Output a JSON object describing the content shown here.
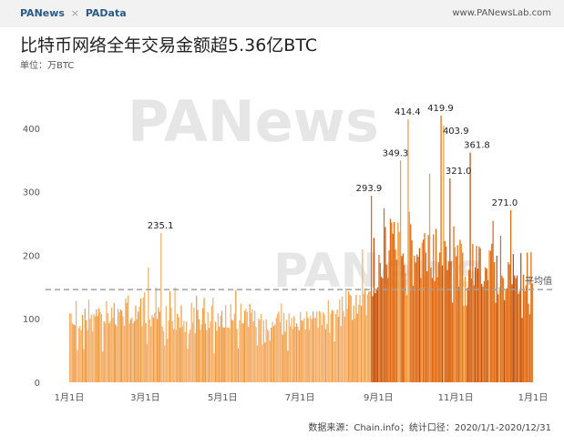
{
  "header": {
    "brand_left": "PANews",
    "brand_sep": "×",
    "brand_right": "PAData",
    "site": "www.PANewsLab.com"
  },
  "title": "比特币网络全年交易金额超5.36亿BTC",
  "unit": "单位：万BTC",
  "footer": "数据来源：Chain.info；统计口径：2020/1/1-2020/12/31",
  "watermark": "PANews",
  "colors": {
    "light": "#f4b06a",
    "medium": "#f19a3e",
    "dark": "#df6a12",
    "darkest": "#c24f0a",
    "avg_line": "#a0a0a0"
  },
  "chart_data": {
    "type": "bar",
    "title": "比特币网络全年交易金额超5.36亿BTC",
    "ylabel": "万BTC",
    "ylim": [
      0,
      440
    ],
    "yticks": [
      0,
      100,
      200,
      300,
      400
    ],
    "x_range": [
      "2020-01-01",
      "2021-01-01"
    ],
    "xticks": [
      {
        "date": "2020-01-01",
        "label": "1月1日"
      },
      {
        "date": "2020-03-01",
        "label": "3月1日"
      },
      {
        "date": "2020-05-01",
        "label": "5月1日"
      },
      {
        "date": "2020-07-01",
        "label": "7月1日"
      },
      {
        "date": "2020-09-01",
        "label": "9月1日"
      },
      {
        "date": "2020-11-01",
        "label": "11月1日"
      },
      {
        "date": "2021-01-01",
        "label": "1月1日"
      }
    ],
    "average": {
      "label": "平均值",
      "value": 146
    },
    "peaks": [
      {
        "date": "2020-03-13",
        "value": 235.1,
        "label": "235.1"
      },
      {
        "date": "2020-08-26",
        "value": 293.9,
        "label": "293.9"
      },
      {
        "date": "2020-09-18",
        "value": 349.3,
        "label": "349.3"
      },
      {
        "date": "2020-09-24",
        "value": 414.4,
        "label": "414.4"
      },
      {
        "date": "2020-10-20",
        "value": 419.9,
        "label": "419.9"
      },
      {
        "date": "2020-10-22",
        "value": 403.9,
        "label": "403.9"
      },
      {
        "date": "2020-10-27",
        "value": 321.0,
        "label": "321.0"
      },
      {
        "date": "2020-11-12",
        "value": 361.8,
        "label": "361.8"
      },
      {
        "date": "2020-12-14",
        "value": 271.0,
        "label": "271.0"
      }
    ],
    "monthly": [
      {
        "month": "2020-01",
        "min": 40,
        "max": 145,
        "typical": 95
      },
      {
        "month": "2020-02",
        "min": 55,
        "max": 165,
        "typical": 110
      },
      {
        "month": "2020-03",
        "min": 50,
        "max": 235,
        "typical": 100
      },
      {
        "month": "2020-04",
        "min": 45,
        "max": 150,
        "typical": 95
      },
      {
        "month": "2020-05",
        "min": 50,
        "max": 200,
        "typical": 100
      },
      {
        "month": "2020-06",
        "min": 45,
        "max": 140,
        "typical": 90
      },
      {
        "month": "2020-07",
        "min": 50,
        "max": 150,
        "typical": 95
      },
      {
        "month": "2020-08",
        "min": 60,
        "max": 294,
        "typical": 120
      },
      {
        "month": "2020-09",
        "min": 130,
        "max": 414,
        "typical": 220
      },
      {
        "month": "2020-10",
        "min": 120,
        "max": 420,
        "typical": 200
      },
      {
        "month": "2020-11",
        "min": 110,
        "max": 362,
        "typical": 180
      },
      {
        "month": "2020-12",
        "min": 100,
        "max": 271,
        "typical": 170
      }
    ]
  }
}
